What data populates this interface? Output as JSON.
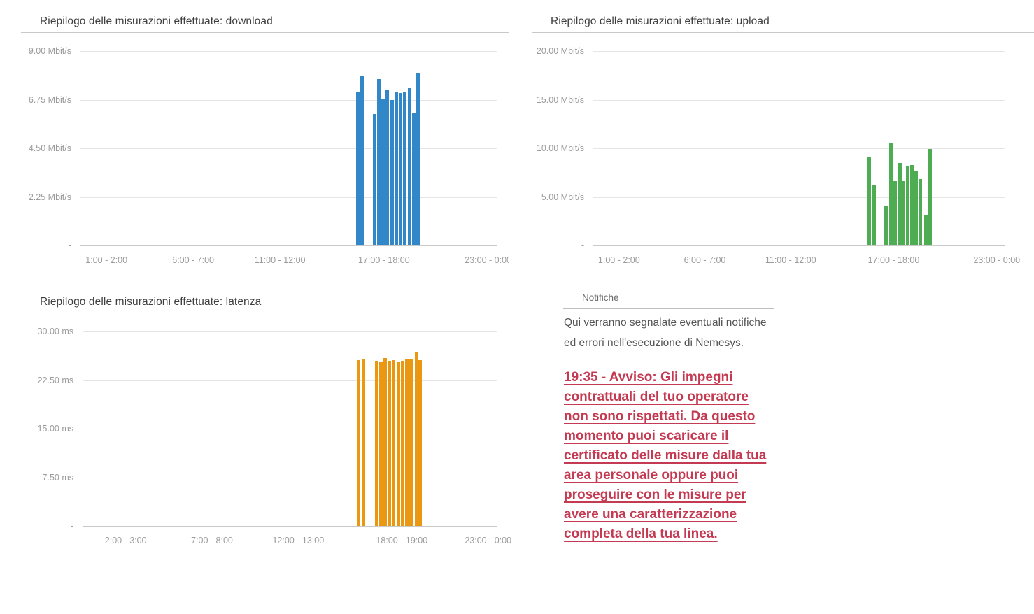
{
  "colors": {
    "download_bar": "#3287c8",
    "upload_bar": "#4ead52",
    "latency_bar": "#ea9712",
    "alert_red": "#c43a52",
    "grid": "#e5e5e5",
    "axis_text": "#9b9b9b",
    "title_text": "#3f3f3f"
  },
  "chart_data": [
    {
      "type": "bar",
      "id": "download",
      "title": "Riepilogo delle misurazioni effettuate: download",
      "ylabel": "Mbit/s",
      "ylim": [
        0,
        9
      ],
      "grid": true,
      "y_tick_values": [
        9,
        6.75,
        4.5,
        2.25,
        0
      ],
      "y_tick_labels": [
        "9.00 Mbit/s",
        "6.75 Mbit/s",
        "4.50 Mbit/s",
        "2.25 Mbit/s",
        "-"
      ],
      "x_tick_labels": [
        "1:00 - 2:00",
        "6:00 - 7:00",
        "11:00 - 12:00",
        "17:00 - 18:00",
        "23:00 - 0:00"
      ],
      "x_tick_pos": [
        0.0625,
        0.2708,
        0.4792,
        0.7292,
        0.9792
      ],
      "x_axis_span": "0:00 - 24:00",
      "bar_color": "#3287c8",
      "bars": [
        {
          "pos": 0.667,
          "value": 7.1
        },
        {
          "pos": 0.677,
          "value": 7.85
        },
        {
          "pos": 0.706,
          "value": 6.1
        },
        {
          "pos": 0.7165,
          "value": 7.7
        },
        {
          "pos": 0.727,
          "value": 6.8
        },
        {
          "pos": 0.7375,
          "value": 7.2
        },
        {
          "pos": 0.748,
          "value": 6.75
        },
        {
          "pos": 0.7585,
          "value": 7.1
        },
        {
          "pos": 0.769,
          "value": 7.05
        },
        {
          "pos": 0.7795,
          "value": 7.1
        },
        {
          "pos": 0.79,
          "value": 7.3
        },
        {
          "pos": 0.8005,
          "value": 6.15
        },
        {
          "pos": 0.811,
          "value": 8.0
        }
      ]
    },
    {
      "type": "bar",
      "id": "upload",
      "title": "Riepilogo delle misurazioni effettuate: upload",
      "ylabel": "Mbit/s",
      "ylim": [
        0,
        20
      ],
      "grid": true,
      "y_tick_values": [
        20,
        15,
        10,
        5,
        0
      ],
      "y_tick_labels": [
        "20.00 Mbit/s",
        "15.00 Mbit/s",
        "10.00 Mbit/s",
        "5.00 Mbit/s",
        "-"
      ],
      "x_tick_labels": [
        "1:00 - 2:00",
        "6:00 - 7:00",
        "11:00 - 12:00",
        "17:00 - 18:00",
        "23:00 - 0:00"
      ],
      "x_tick_pos": [
        0.0625,
        0.2708,
        0.4792,
        0.7292,
        0.9792
      ],
      "x_axis_span": "0:00 - 24:00",
      "bar_color": "#4ead52",
      "bars": [
        {
          "pos": 0.67,
          "value": 9.1
        },
        {
          "pos": 0.681,
          "value": 6.2
        },
        {
          "pos": 0.711,
          "value": 4.1
        },
        {
          "pos": 0.723,
          "value": 10.5
        },
        {
          "pos": 0.733,
          "value": 6.6
        },
        {
          "pos": 0.744,
          "value": 8.5
        },
        {
          "pos": 0.752,
          "value": 6.6
        },
        {
          "pos": 0.763,
          "value": 8.2
        },
        {
          "pos": 0.774,
          "value": 8.3
        },
        {
          "pos": 0.783,
          "value": 7.7
        },
        {
          "pos": 0.793,
          "value": 6.8
        },
        {
          "pos": 0.807,
          "value": 3.2
        },
        {
          "pos": 0.817,
          "value": 9.9
        }
      ]
    },
    {
      "type": "bar",
      "id": "latenza",
      "title": "Riepilogo delle misurazioni effettuate: latenza",
      "ylabel": "ms",
      "ylim": [
        0,
        30
      ],
      "grid": true,
      "y_tick_values": [
        30,
        22.5,
        15,
        7.5,
        0
      ],
      "y_tick_labels": [
        "30.00 ms",
        "22.50 ms",
        "15.00 ms",
        "7.50 ms",
        "-"
      ],
      "x_tick_labels": [
        "2:00 - 3:00",
        "7:00 - 8:00",
        "12:00 - 13:00",
        "18:00 - 19:00",
        "23:00 - 0:00"
      ],
      "x_tick_pos": [
        0.1042,
        0.3125,
        0.5208,
        0.7708,
        0.9792
      ],
      "x_axis_span": "0:00 - 24:00",
      "bar_color": "#ea9712",
      "bars": [
        {
          "pos": 0.666,
          "value": 25.6
        },
        {
          "pos": 0.678,
          "value": 25.8
        },
        {
          "pos": 0.71,
          "value": 25.5
        },
        {
          "pos": 0.72,
          "value": 25.3
        },
        {
          "pos": 0.731,
          "value": 25.9
        },
        {
          "pos": 0.741,
          "value": 25.5
        },
        {
          "pos": 0.751,
          "value": 25.6
        },
        {
          "pos": 0.762,
          "value": 25.4
        },
        {
          "pos": 0.772,
          "value": 25.5
        },
        {
          "pos": 0.783,
          "value": 25.7
        },
        {
          "pos": 0.793,
          "value": 25.8
        },
        {
          "pos": 0.806,
          "value": 26.9
        },
        {
          "pos": 0.815,
          "value": 25.6
        }
      ]
    }
  ],
  "notifications": {
    "header": "Notifiche",
    "description": "Qui verranno segnalate eventuali notifiche ed errori nell'esecuzione di Nemesys.",
    "alert": {
      "time": "19:35",
      "text": "19:35 - Avviso: Gli impegni contrattuali del tuo operatore non sono rispettati. Da questo momento puoi scaricare il certificato delle misure dalla tua area personale oppure puoi proseguire con le misure per avere una caratterizzazione completa della tua linea."
    }
  }
}
